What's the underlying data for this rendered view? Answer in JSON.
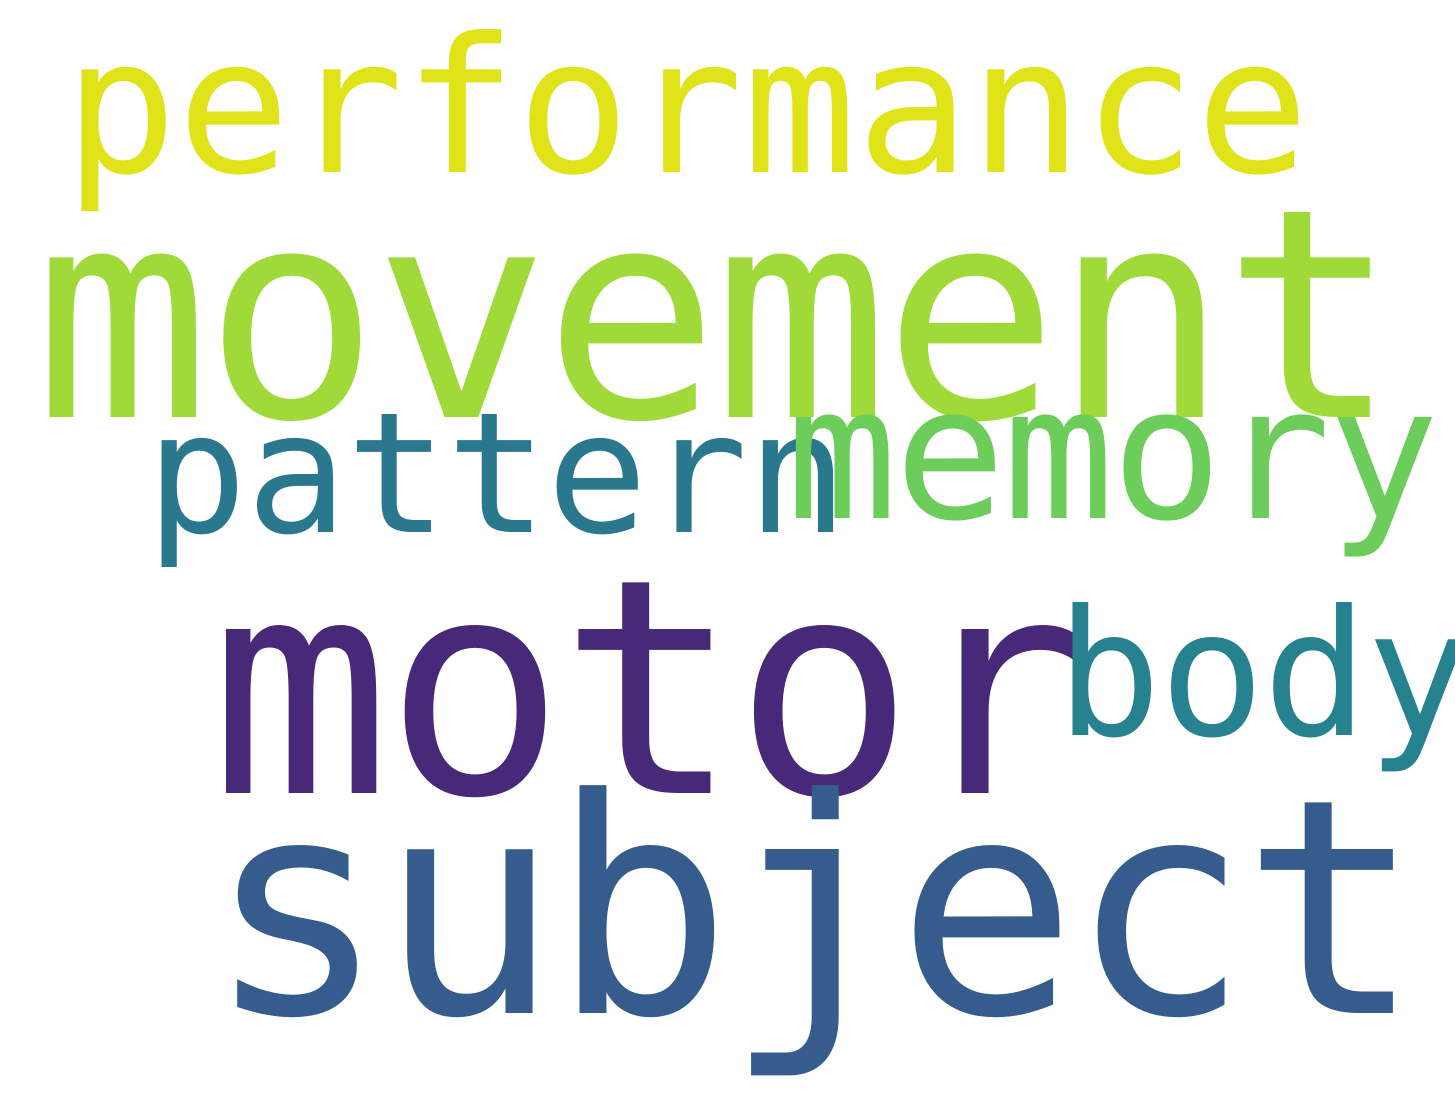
{
  "words": {
    "performance": {
      "text": "performance",
      "color": "#dfe318"
    },
    "movement": {
      "text": "movement",
      "color": "#a0da39"
    },
    "pattern": {
      "text": "pattern",
      "color": "#2a788e"
    },
    "memory": {
      "text": "memory",
      "color": "#6ccd5a"
    },
    "motor": {
      "text": "motor",
      "color": "#482878"
    },
    "body": {
      "text": "body",
      "color": "#26828e"
    },
    "subject": {
      "text": "subject",
      "color": "#365c8d"
    }
  },
  "background_color": "#ffffff"
}
